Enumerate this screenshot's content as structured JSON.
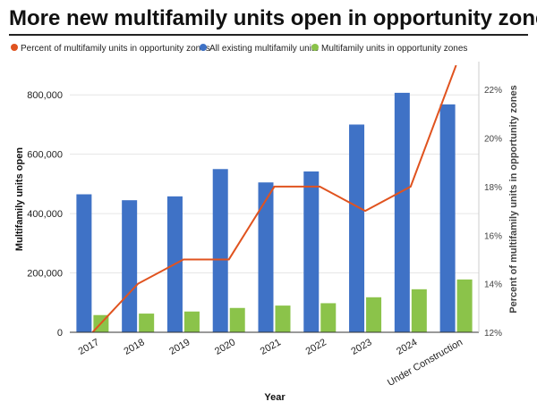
{
  "chart_data": {
    "type": "bar",
    "title": "More new multifamily units open in opportunity zones",
    "xlabel": "Year",
    "ylabel": "Multifamily units open",
    "y2label": "Percent of multifamily units in opportunity zones",
    "categories": [
      "2017",
      "2018",
      "2019",
      "2020",
      "2021",
      "2022",
      "2023",
      "2024",
      "Under Construction"
    ],
    "ylim": [
      0,
      900000
    ],
    "y_ticks": [
      0,
      200000,
      400000,
      600000,
      800000
    ],
    "y_tick_labels": [
      "0",
      "200,000",
      "400,000",
      "600,000",
      "800,000"
    ],
    "y2lim": [
      12,
      23
    ],
    "y2_ticks": [
      12,
      14,
      16,
      18,
      20,
      22
    ],
    "y2_tick_labels": [
      "12%",
      "14%",
      "16%",
      "18%",
      "20%",
      "22%"
    ],
    "legend_position": "top-left",
    "series": [
      {
        "name": "Percent of multifamily units in opportunity zones",
        "type": "line",
        "axis": "right",
        "color": "#e0531f",
        "values": [
          12.0,
          14.0,
          15.0,
          15.0,
          18.0,
          18.0,
          17.0,
          18.0,
          23.0
        ]
      },
      {
        "name": "All existing multifamily units",
        "type": "bar",
        "axis": "left",
        "color": "#3f72c6",
        "values": [
          465000,
          445000,
          458000,
          550000,
          505000,
          542000,
          700000,
          807000,
          768000
        ]
      },
      {
        "name": "Multifamily units in opportunity zones",
        "type": "bar",
        "axis": "left",
        "color": "#8bc34a",
        "values": [
          58000,
          63000,
          70000,
          82000,
          90000,
          98000,
          118000,
          145000,
          178000
        ]
      }
    ]
  }
}
